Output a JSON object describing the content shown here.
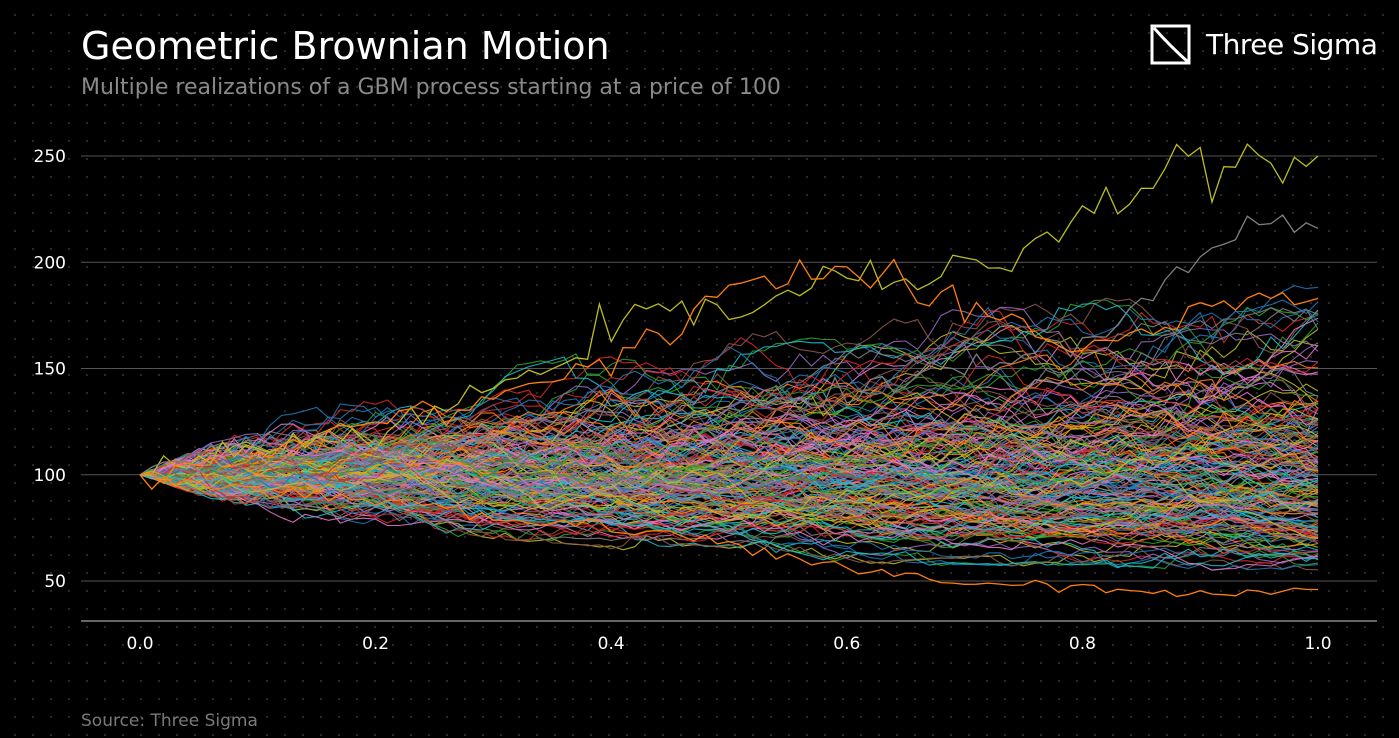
{
  "header": {
    "title": "Geometric Brownian Motion",
    "subtitle": "Multiple realizations of a GBM process starting at a price of 100"
  },
  "brand": {
    "name": "Three Sigma",
    "icon": "three-sigma-logo-icon"
  },
  "footer": {
    "source": "Source: Three Sigma"
  },
  "colors": {
    "background": "#000000",
    "grid": "#555555",
    "text": "#ffffff",
    "muted": "#8a8a8a",
    "palette": [
      "#1f77b4",
      "#ff7f0e",
      "#2ca02c",
      "#d62728",
      "#9467bd",
      "#8c564b",
      "#e377c2",
      "#7f7f7f",
      "#bcbd22",
      "#17becf"
    ]
  },
  "chart_data": {
    "type": "line",
    "title": "Geometric Brownian Motion",
    "subtitle": "Multiple realizations of a GBM process starting at a price of 100",
    "xlabel": "",
    "ylabel": "",
    "xlim": [
      0.0,
      1.0
    ],
    "ylim": [
      30,
      262
    ],
    "xticks": [
      0.0,
      0.2,
      0.4,
      0.6,
      0.8,
      1.0
    ],
    "xtick_labels": [
      "0.0",
      "0.2",
      "0.4",
      "0.6",
      "0.8",
      "1.0"
    ],
    "yticks": [
      50,
      100,
      150,
      200,
      250
    ],
    "ytick_labels": [
      "50",
      "100",
      "150",
      "200",
      "250"
    ],
    "grid": "horizontal",
    "legend": "none",
    "start_value": 100,
    "num_paths": 200,
    "num_steps": 100,
    "highlighted_paths": [
      {
        "name": "highest path",
        "color": "#bcbd22",
        "x": [
          0.0,
          0.1,
          0.2,
          0.3,
          0.4,
          0.5,
          0.6,
          0.7,
          0.8,
          0.9,
          1.0
        ],
        "values": [
          100,
          112,
          118,
          140,
          170,
          178,
          192,
          192,
          226,
          245,
          250
        ]
      },
      {
        "name": "second highest path",
        "color": "#7f7f7f",
        "x": [
          0.0,
          0.1,
          0.2,
          0.3,
          0.4,
          0.5,
          0.6,
          0.7,
          0.8,
          0.9,
          1.0
        ],
        "values": [
          100,
          105,
          112,
          118,
          122,
          130,
          140,
          150,
          162,
          205,
          216
        ]
      },
      {
        "name": "orange high path",
        "color": "#ff7f0e",
        "x": [
          0.0,
          0.1,
          0.2,
          0.3,
          0.4,
          0.5,
          0.6,
          0.7,
          0.8,
          0.9,
          1.0
        ],
        "values": [
          100,
          110,
          125,
          135,
          155,
          188,
          197,
          175,
          160,
          178,
          183
        ]
      },
      {
        "name": "lowest path",
        "color": "#ff7f0e",
        "x": [
          0.0,
          0.1,
          0.2,
          0.3,
          0.4,
          0.5,
          0.6,
          0.7,
          0.8,
          0.9,
          1.0
        ],
        "values": [
          100,
          92,
          88,
          80,
          75,
          68,
          55,
          49,
          47,
          43,
          46
        ]
      }
    ],
    "envelope": {
      "x": [
        0.0,
        0.1,
        0.2,
        0.3,
        0.4,
        0.5,
        0.6,
        0.7,
        0.8,
        0.9,
        1.0
      ],
      "upper": [
        100,
        125,
        140,
        150,
        160,
        165,
        175,
        178,
        182,
        188,
        190
      ],
      "lower": [
        100,
        80,
        72,
        70,
        65,
        60,
        58,
        57,
        56,
        55,
        55
      ]
    },
    "annotations": []
  }
}
